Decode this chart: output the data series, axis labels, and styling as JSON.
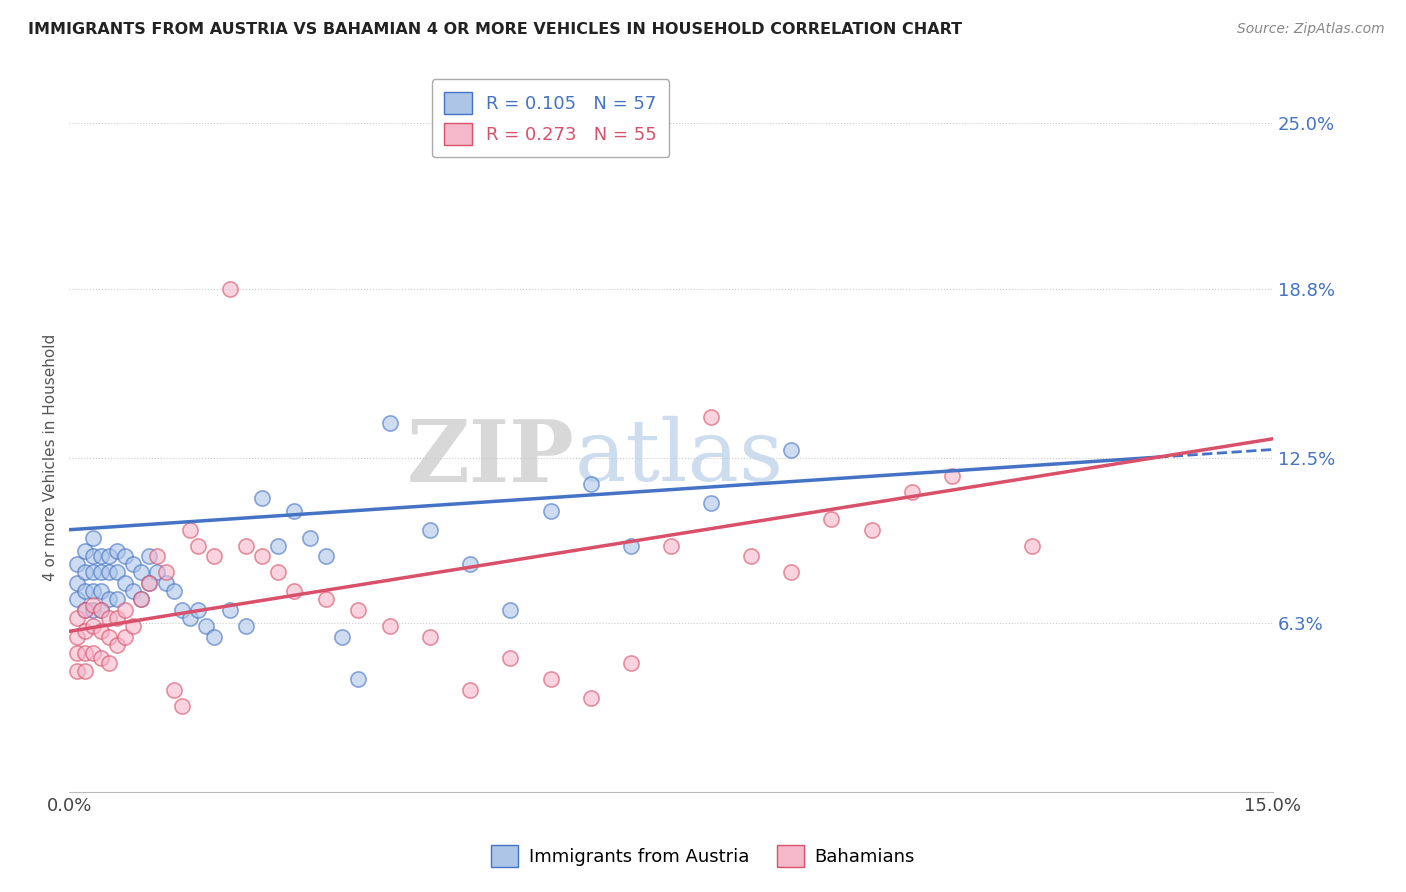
{
  "title": "IMMIGRANTS FROM AUSTRIA VS BAHAMIAN 4 OR MORE VEHICLES IN HOUSEHOLD CORRELATION CHART",
  "source": "Source: ZipAtlas.com",
  "ylabel": "4 or more Vehicles in Household",
  "xlim": [
    0.0,
    0.15
  ],
  "ylim": [
    0.0,
    0.25
  ],
  "xtick_vals": [
    0.0,
    0.05,
    0.1,
    0.15
  ],
  "xtick_labels": [
    "0.0%",
    "",
    "",
    "15.0%"
  ],
  "ytick_right_vals": [
    0.063,
    0.125,
    0.188,
    0.25
  ],
  "ytick_right_labels": [
    "6.3%",
    "12.5%",
    "18.8%",
    "25.0%"
  ],
  "blue_R": 0.105,
  "blue_N": 57,
  "pink_R": 0.273,
  "pink_N": 55,
  "blue_color": "#adc6e8",
  "pink_color": "#f5b8cb",
  "blue_line_color": "#4472c4",
  "pink_line_color": "#d9506a",
  "legend_label_blue": "Immigrants from Austria",
  "legend_label_pink": "Bahamians",
  "watermark_zip": "ZIP",
  "watermark_atlas": "atlas",
  "blue_scatter_x": [
    0.001,
    0.001,
    0.001,
    0.002,
    0.002,
    0.002,
    0.002,
    0.003,
    0.003,
    0.003,
    0.003,
    0.003,
    0.004,
    0.004,
    0.004,
    0.004,
    0.005,
    0.005,
    0.005,
    0.006,
    0.006,
    0.006,
    0.007,
    0.007,
    0.008,
    0.008,
    0.009,
    0.009,
    0.01,
    0.01,
    0.011,
    0.012,
    0.013,
    0.014,
    0.015,
    0.016,
    0.017,
    0.018,
    0.02,
    0.022,
    0.024,
    0.026,
    0.028,
    0.03,
    0.032,
    0.034,
    0.036,
    0.04,
    0.045,
    0.05,
    0.055,
    0.06,
    0.065,
    0.07,
    0.08,
    0.09
  ],
  "blue_scatter_y": [
    0.085,
    0.078,
    0.072,
    0.09,
    0.082,
    0.075,
    0.068,
    0.095,
    0.088,
    0.082,
    0.075,
    0.068,
    0.088,
    0.082,
    0.075,
    0.068,
    0.088,
    0.082,
    0.072,
    0.09,
    0.082,
    0.072,
    0.088,
    0.078,
    0.085,
    0.075,
    0.082,
    0.072,
    0.088,
    0.078,
    0.082,
    0.078,
    0.075,
    0.068,
    0.065,
    0.068,
    0.062,
    0.058,
    0.068,
    0.062,
    0.11,
    0.092,
    0.105,
    0.095,
    0.088,
    0.058,
    0.042,
    0.138,
    0.098,
    0.085,
    0.068,
    0.105,
    0.115,
    0.092,
    0.108,
    0.128
  ],
  "pink_scatter_x": [
    0.001,
    0.001,
    0.001,
    0.001,
    0.002,
    0.002,
    0.002,
    0.002,
    0.003,
    0.003,
    0.003,
    0.004,
    0.004,
    0.004,
    0.005,
    0.005,
    0.005,
    0.006,
    0.006,
    0.007,
    0.007,
    0.008,
    0.009,
    0.01,
    0.011,
    0.012,
    0.013,
    0.014,
    0.015,
    0.016,
    0.018,
    0.02,
    0.022,
    0.024,
    0.026,
    0.028,
    0.032,
    0.036,
    0.04,
    0.045,
    0.05,
    0.055,
    0.06,
    0.065,
    0.07,
    0.075,
    0.08,
    0.085,
    0.09,
    0.095,
    0.1,
    0.105,
    0.11,
    0.12
  ],
  "pink_scatter_y": [
    0.065,
    0.058,
    0.052,
    0.045,
    0.068,
    0.06,
    0.052,
    0.045,
    0.07,
    0.062,
    0.052,
    0.068,
    0.06,
    0.05,
    0.065,
    0.058,
    0.048,
    0.065,
    0.055,
    0.068,
    0.058,
    0.062,
    0.072,
    0.078,
    0.088,
    0.082,
    0.038,
    0.032,
    0.098,
    0.092,
    0.088,
    0.188,
    0.092,
    0.088,
    0.082,
    0.075,
    0.072,
    0.068,
    0.062,
    0.058,
    0.038,
    0.05,
    0.042,
    0.035,
    0.048,
    0.092,
    0.14,
    0.088,
    0.082,
    0.102,
    0.098,
    0.112,
    0.118,
    0.092
  ],
  "blue_line_x0": 0.0,
  "blue_line_y0": 0.098,
  "blue_line_x1": 0.15,
  "blue_line_y1": 0.128,
  "pink_line_x0": 0.0,
  "pink_line_y0": 0.06,
  "pink_line_x1": 0.15,
  "pink_line_y1": 0.132
}
